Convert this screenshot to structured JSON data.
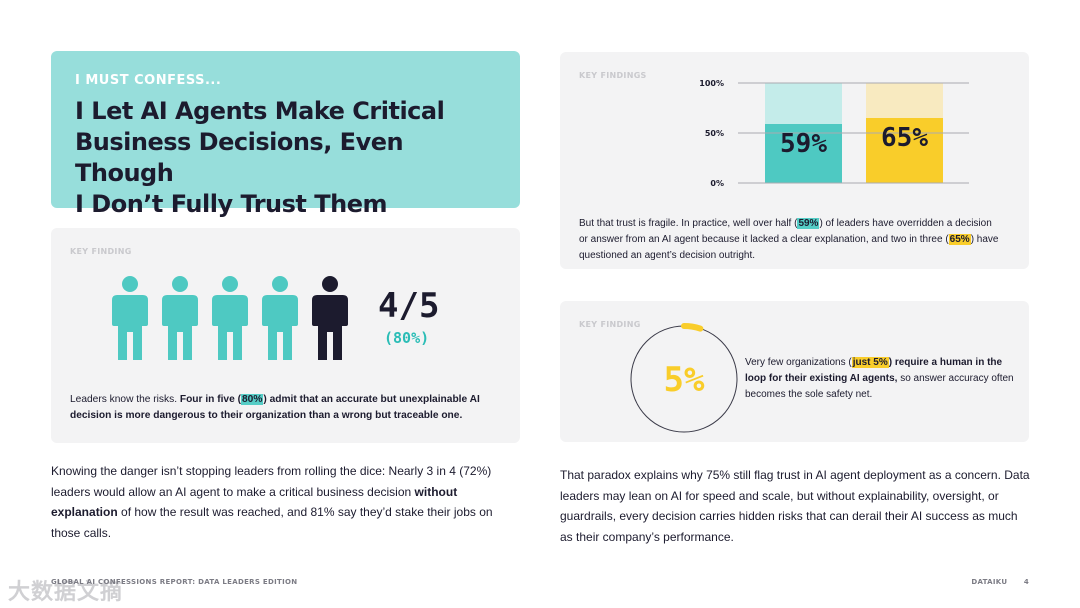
{
  "hero": {
    "kicker": "I MUST CONFESS...",
    "title_lines": [
      "I Let AI Agents Make Critical",
      "Business Decisions, Even Though",
      "I Don’t Fully Trust Them"
    ]
  },
  "finding_left": {
    "label": "KEY FINDING",
    "icons": [
      "person-icon",
      "person-icon",
      "person-icon",
      "person-icon",
      "person-icon"
    ],
    "highlighted_count": 4,
    "total_count": 5,
    "ratio": "4/5",
    "ratio_pct": "(80%)",
    "text_intro": "Leaders know the risks. ",
    "text_bold_1": "Four in five (",
    "text_hl": "80%",
    "text_bold_2": ") admit that an accurate but unexplainable AI decision is more dangerous to their organization than a wrong but traceable one."
  },
  "finding_bars": {
    "label": "KEY FINDINGS",
    "text_1": "But that trust is fragile. In practice, well over half (",
    "hl_1": "59%",
    "text_2": ") of leaders have overridden a decision or answer from an AI agent because it lacked a clear explanation, and two in three (",
    "hl_2": "65%",
    "text_3": ") have questioned an agent’s decision outright."
  },
  "chart_data": {
    "type": "bar",
    "categories": [
      "",
      ""
    ],
    "values": [
      59,
      65
    ],
    "value_labels": [
      "59%",
      "65%"
    ],
    "ylim": [
      0,
      100
    ],
    "yticks": [
      "0%",
      "50%",
      "100%"
    ],
    "grid": true,
    "colors": {
      "bar_1": "#4ec9c2",
      "bar_1_bg": "#c4ecea",
      "bar_2": "#f9cd2a",
      "bar_2_bg": "#f8eac0"
    }
  },
  "finding_gauge": {
    "label": "KEY FINDING",
    "value": 5,
    "value_label": "5%",
    "text_1": "Very few organizations (",
    "hl": "just 5%",
    "text_bold": ") require a human in the loop for their existing AI agents,",
    "text_2": " so answer accuracy often becomes the sole safety net."
  },
  "body_left": {
    "text_1": "Knowing the danger isn’t stopping leaders from rolling the dice: Nearly 3 in 4 (72%) leaders would allow an AI agent to make a critical business decision ",
    "bold": "without explanation",
    "text_2": " of how the result was reached, and 81% say they’d stake their jobs on those calls."
  },
  "body_right": {
    "text": "That paradox explains why 75% still flag trust in AI agent deployment as a concern. Data leaders may lean on AI for speed and scale, but without explainability, oversight, or guardrails, every decision carries hidden risks that can derail their AI success as much as their company’s performance."
  },
  "footer": {
    "left": "GLOBAL AI CONFESSIONS REPORT: DATA LEADERS EDITION",
    "brand": "DATAIKU",
    "page": "4"
  },
  "watermark": "大数据文摘",
  "colors": {
    "teal": "#4ec9c2",
    "teal_light": "#97dedb",
    "yellow": "#f9cd2a",
    "dark": "#1c1b2e",
    "card_bg": "#f3f3f4"
  }
}
